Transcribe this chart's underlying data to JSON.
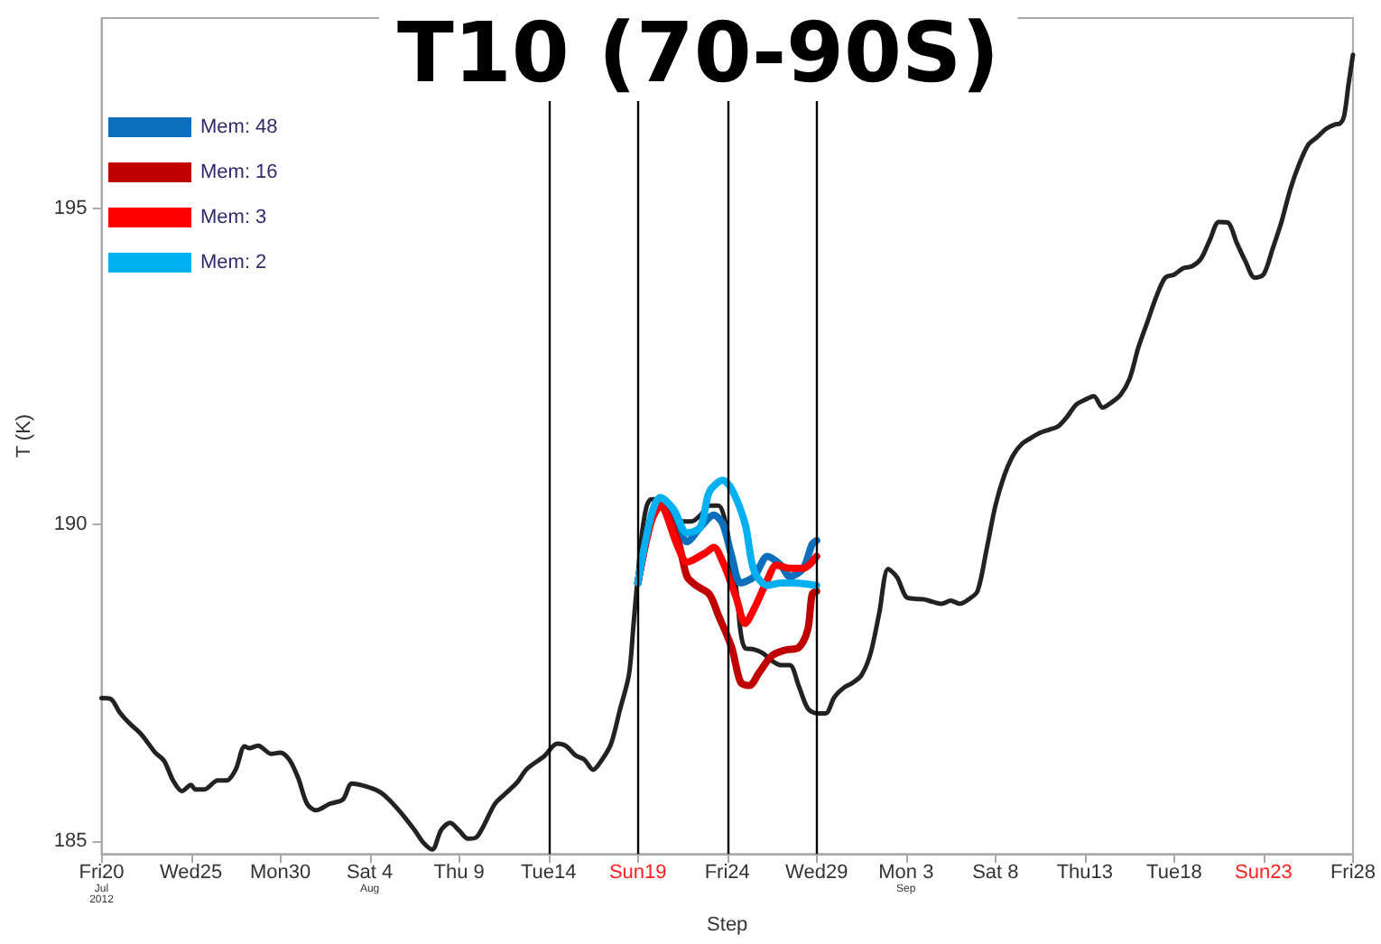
{
  "chart_data": {
    "type": "line",
    "title": "T10 (70-90S)",
    "xlabel": "Step",
    "ylabel": "T (K)",
    "xlim": [
      "2012-07-20",
      "2012-09-28"
    ],
    "xticks": [
      {
        "value": "2012-07-20",
        "label": "Fri20\nJul\n2012"
      },
      {
        "value": "2012-07-25",
        "label": "Wed25"
      },
      {
        "value": "2012-07-30",
        "label": "Mon30"
      },
      {
        "value": "2012-08-04",
        "label": "Sat 4\nAug"
      },
      {
        "value": "2012-08-09",
        "label": "Thu 9"
      },
      {
        "value": "2012-08-14",
        "label": "Tue14"
      },
      {
        "value": "2012-08-19",
        "label": "Sun19"
      },
      {
        "value": "2012-08-24",
        "label": "Fri24"
      },
      {
        "value": "2012-08-29",
        "label": "Wed29"
      },
      {
        "value": "2012-09-03",
        "label": "Mon 3\nSep"
      },
      {
        "value": "2012-09-08",
        "label": "Sat 8"
      },
      {
        "value": "2012-09-13",
        "label": "Thu13"
      },
      {
        "value": "2012-09-18",
        "label": "Tue18"
      },
      {
        "value": "2012-09-23",
        "label": "Sun23"
      },
      {
        "value": "2012-09-28",
        "label": "Fri28"
      }
    ],
    "ylim": [
      184.8,
      198
    ],
    "yticks": [
      185,
      190,
      195
    ],
    "grid": false,
    "legend": "top left",
    "marker": "none",
    "line_style": "solid",
    "ref_lines": [
      {
        "axis": "x",
        "value": "2012-08-14",
        "color": "#000000"
      },
      {
        "axis": "x",
        "value": "2012-08-19",
        "color": "#000000"
      },
      {
        "axis": "x",
        "value": "2012-08-24",
        "color": "#000000"
      },
      {
        "axis": "x",
        "value": "2012-08-29",
        "color": "#000000"
      }
    ],
    "series": [
      {
        "color": "#222222",
        "x": [
          "2012-07-20T00:00",
          "2012-07-20T12:00",
          "2012-07-21T00:00",
          "2012-07-21T12:00",
          "2012-07-22T06:00",
          "2012-07-23T00:00",
          "2012-07-23T12:00",
          "2012-07-24T00:00",
          "2012-07-24T12:00",
          "2012-07-25T00:00",
          "2012-07-25T06:00",
          "2012-07-25T18:00",
          "2012-07-26T12:00",
          "2012-07-27T00:00",
          "2012-07-27T12:00",
          "2012-07-28T00:00",
          "2012-07-28T06:00",
          "2012-07-28T18:00",
          "2012-07-29T12:00",
          "2012-07-30T00:00",
          "2012-07-30T12:00",
          "2012-07-31T00:00",
          "2012-07-31T12:00",
          "2012-08-01T00:00",
          "2012-08-01T18:00",
          "2012-08-02T12:00",
          "2012-08-03T00:00",
          "2012-08-03T18:00",
          "2012-08-04T12:00",
          "2012-08-05T00:00",
          "2012-08-05T18:00",
          "2012-08-06T12:00",
          "2012-08-07T00:00",
          "2012-08-07T12:00",
          "2012-08-08T00:00",
          "2012-08-08T12:00",
          "2012-08-09T00:00",
          "2012-08-09T12:00",
          "2012-08-10T00:00",
          "2012-08-11T00:00",
          "2012-08-11T12:00",
          "2012-08-12T06:00",
          "2012-08-12T18:00",
          "2012-08-13T12:00",
          "2012-08-13T18:00",
          "2012-08-14T12:00",
          "2012-08-15T00:00",
          "2012-08-15T12:00",
          "2012-08-16T00:00",
          "2012-08-16T12:00",
          "2012-08-17T00:00",
          "2012-08-17T12:00",
          "2012-08-18T00:00",
          "2012-08-18T12:00",
          "2012-08-18T18:00",
          "2012-08-19T00:00",
          "2012-08-19T06:00",
          "2012-08-19T12:00",
          "2012-08-19T18:00",
          "2012-08-20T00:00",
          "2012-08-20T06:00",
          "2012-08-20T12:00",
          "2012-08-20T18:00",
          "2012-08-21T00:00",
          "2012-08-21T12:00",
          "2012-08-22T00:00",
          "2012-08-22T12:00",
          "2012-08-23T00:00",
          "2012-08-23T12:00",
          "2012-08-24T00:00",
          "2012-08-24T06:00",
          "2012-08-24T12:00",
          "2012-08-24T18:00",
          "2012-08-25T00:00",
          "2012-08-25T12:00",
          "2012-08-26T00:00",
          "2012-08-26T12:00",
          "2012-08-27T00:00",
          "2012-08-27T12:00",
          "2012-08-28T00:00",
          "2012-08-28T12:00",
          "2012-08-29T00:00",
          "2012-08-29T12:00",
          "2012-08-30T00:00",
          "2012-08-30T12:00",
          "2012-08-31T00:00",
          "2012-08-31T12:00",
          "2012-09-01T00:00",
          "2012-09-01T12:00",
          "2012-09-02T00:00",
          "2012-09-02T12:00",
          "2012-09-03T00:00",
          "2012-09-03T12:00",
          "2012-09-04T00:00",
          "2012-09-04T12:00",
          "2012-09-05T00:00",
          "2012-09-05T12:00",
          "2012-09-06T00:00",
          "2012-09-06T12:00",
          "2012-09-07T00:00",
          "2012-09-07T12:00",
          "2012-09-08T00:00",
          "2012-09-08T12:00",
          "2012-09-09T00:00",
          "2012-09-09T12:00",
          "2012-09-10T00:00",
          "2012-09-10T12:00",
          "2012-09-11T00:00",
          "2012-09-11T12:00",
          "2012-09-12T00:00",
          "2012-09-12T12:00",
          "2012-09-13T00:00",
          "2012-09-13T12:00",
          "2012-09-14T00:00",
          "2012-09-14T12:00",
          "2012-09-15T00:00",
          "2012-09-15T12:00",
          "2012-09-16T00:00",
          "2012-09-16T12:00",
          "2012-09-17T00:00",
          "2012-09-17T12:00",
          "2012-09-18T00:00",
          "2012-09-18T12:00",
          "2012-09-19T00:00",
          "2012-09-19T12:00",
          "2012-09-20T00:00",
          "2012-09-20T12:00",
          "2012-09-21T00:00",
          "2012-09-21T12:00",
          "2012-09-22T00:00",
          "2012-09-22T12:00",
          "2012-09-23T00:00",
          "2012-09-23T12:00",
          "2012-09-24T00:00",
          "2012-09-24T12:00",
          "2012-09-25T00:00",
          "2012-09-25T12:00",
          "2012-09-26T00:00",
          "2012-09-26T12:00",
          "2012-09-27T00:00",
          "2012-09-27T06:00",
          "2012-09-27T12:00",
          "2012-09-27T18:00",
          "2012-09-28T00:00"
        ],
        "values": [
          187.26,
          187.25,
          187.04,
          186.88,
          186.68,
          186.4,
          186.27,
          185.96,
          185.79,
          185.89,
          185.82,
          185.82,
          185.96,
          185.96,
          186.13,
          186.5,
          186.47,
          186.51,
          186.38,
          186.4,
          186.29,
          186.0,
          185.59,
          185.49,
          185.59,
          185.66,
          185.91,
          185.87,
          185.79,
          185.68,
          185.45,
          185.18,
          184.98,
          184.87,
          185.18,
          185.29,
          185.17,
          185.04,
          185.07,
          185.59,
          185.73,
          185.93,
          186.13,
          186.29,
          186.34,
          186.54,
          186.5,
          186.36,
          186.29,
          186.13,
          186.29,
          186.54,
          187.08,
          187.63,
          188.4,
          189.2,
          189.9,
          190.3,
          190.4,
          190.4,
          190.35,
          190.2,
          190.1,
          190.05,
          190.05,
          190.05,
          190.15,
          190.3,
          190.3,
          189.9,
          189.3,
          189.0,
          188.3,
          188.05,
          188.03,
          187.97,
          187.85,
          187.78,
          187.78,
          187.45,
          187.1,
          187.02,
          187.02,
          187.28,
          187.42,
          187.5,
          187.62,
          187.95,
          188.6,
          189.3,
          189.17,
          188.86,
          188.83,
          188.82,
          188.78,
          188.75,
          188.8,
          188.75,
          188.82,
          188.95,
          189.6,
          190.3,
          190.78,
          191.1,
          191.28,
          191.37,
          191.45,
          191.5,
          191.55,
          191.7,
          191.89,
          191.97,
          192.03,
          191.85,
          191.93,
          192.05,
          192.3,
          192.8,
          193.2,
          193.6,
          193.9,
          193.95,
          194.05,
          194.08,
          194.2,
          194.5,
          194.78,
          194.77,
          194.45,
          194.15,
          193.9,
          193.95,
          194.35,
          194.78,
          195.3,
          195.7,
          196.0,
          196.12,
          196.25,
          196.32,
          196.33,
          196.45,
          196.95,
          197.42
        ]
      },
      {
        "name": "Mem: 48",
        "color": "#0b6fbe",
        "x": [
          "2012-08-19T00:00",
          "2012-08-19T18:00",
          "2012-08-20T06:00",
          "2012-08-21T00:00",
          "2012-08-21T18:00",
          "2012-08-22T12:00",
          "2012-08-23T06:00",
          "2012-08-23T18:00",
          "2012-08-24T06:00",
          "2012-08-24T18:00",
          "2012-08-25T12:00",
          "2012-08-26T06:00",
          "2012-08-27T00:00",
          "2012-08-27T12:00",
          "2012-08-28T06:00",
          "2012-08-28T18:00",
          "2012-08-29T00:00"
        ],
        "values": [
          189.08,
          190.1,
          190.33,
          190.15,
          189.73,
          189.96,
          190.15,
          190.01,
          189.5,
          189.08,
          189.18,
          189.5,
          189.36,
          189.18,
          189.31,
          189.69,
          189.75
        ]
      },
      {
        "name": "Mem: 16",
        "color": "#c00000",
        "x": [
          "2012-08-19T00:00",
          "2012-08-19T18:00",
          "2012-08-20T06:00",
          "2012-08-21T06:00",
          "2012-08-21T18:00",
          "2012-08-22T06:00",
          "2012-08-23T00:00",
          "2012-08-23T12:00",
          "2012-08-24T06:00",
          "2012-08-24T18:00",
          "2012-08-25T06:00",
          "2012-08-25T18:00",
          "2012-08-26T12:00",
          "2012-08-27T06:00",
          "2012-08-28T00:00",
          "2012-08-28T12:00",
          "2012-08-28T18:00",
          "2012-08-29T00:00"
        ],
        "values": [
          189.08,
          190.1,
          190.3,
          189.73,
          189.18,
          189.04,
          188.9,
          188.57,
          188.06,
          187.51,
          187.46,
          187.65,
          187.93,
          188.02,
          188.06,
          188.34,
          188.9,
          188.95
        ]
      },
      {
        "name": "Mem: 3",
        "color": "#ff0000",
        "x": [
          "2012-08-19T00:00",
          "2012-08-19T18:00",
          "2012-08-20T06:00",
          "2012-08-21T06:00",
          "2012-08-21T18:00",
          "2012-08-22T18:00",
          "2012-08-23T06:00",
          "2012-08-23T18:00",
          "2012-08-24T12:00",
          "2012-08-25T00:00",
          "2012-08-25T12:00",
          "2012-08-26T06:00",
          "2012-08-26T18:00",
          "2012-08-27T12:00",
          "2012-08-28T06:00",
          "2012-08-29T00:00"
        ],
        "values": [
          189.08,
          190.05,
          190.29,
          189.64,
          189.41,
          189.55,
          189.64,
          189.41,
          188.85,
          188.44,
          188.67,
          189.13,
          189.36,
          189.31,
          189.31,
          189.5
        ]
      },
      {
        "name": "Mem: 2",
        "color": "#00b0f0",
        "x": [
          "2012-08-19T00:00",
          "2012-08-19T18:00",
          "2012-08-20T06:00",
          "2012-08-21T00:00",
          "2012-08-21T18:00",
          "2012-08-22T12:00",
          "2012-08-23T00:00",
          "2012-08-23T18:00",
          "2012-08-24T06:00",
          "2012-08-25T00:00",
          "2012-08-25T12:00",
          "2012-08-26T06:00",
          "2012-08-27T00:00",
          "2012-08-27T18:00",
          "2012-08-29T00:00"
        ],
        "values": [
          189.08,
          190.15,
          190.43,
          190.24,
          189.87,
          189.96,
          190.52,
          190.7,
          190.56,
          190.01,
          189.27,
          189.04,
          189.08,
          189.08,
          189.04
        ]
      }
    ]
  }
}
